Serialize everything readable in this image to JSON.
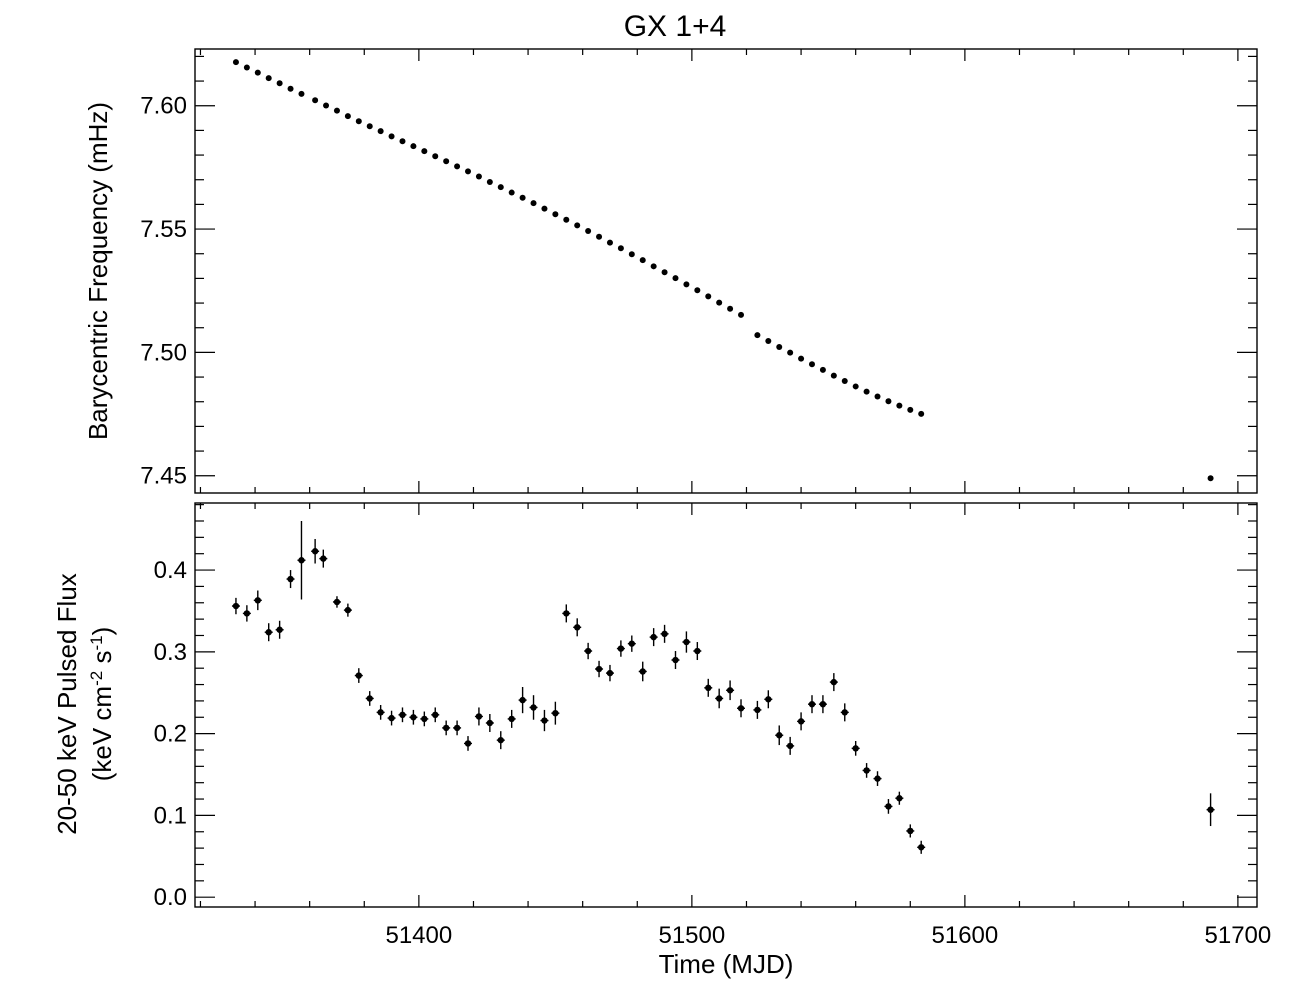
{
  "chart_data": [
    {
      "type": "scatter",
      "title": "GX 1+4",
      "ylabel": "Barycentric Frequency (mHz)",
      "ylim": [
        7.443,
        7.623
      ],
      "xlim": [
        51318,
        51707
      ],
      "yticks": [
        "7.45",
        "7.50",
        "7.55",
        "7.60"
      ],
      "grid": false,
      "series": [
        {
          "x": [
            51333,
            51337,
            51341,
            51345,
            51349,
            51353,
            51357,
            51362,
            51366,
            51370,
            51374,
            51378,
            51382,
            51386,
            51390,
            51394,
            51398,
            51402,
            51406,
            51410,
            51414,
            51418,
            51422,
            51426,
            51430,
            51434,
            51438,
            51442,
            51446,
            51450,
            51454,
            51458,
            51462,
            51466,
            51470,
            51474,
            51478,
            51482,
            51486,
            51490,
            51494,
            51498,
            51502,
            51506,
            51510,
            51514,
            51518,
            51524,
            51528,
            51532,
            51536,
            51540,
            51544,
            51548,
            51552,
            51556,
            51560,
            51564,
            51568,
            51572,
            51576,
            51580,
            51584,
            51690
          ],
          "y": [
            7.6177,
            7.6155,
            7.6134,
            7.6112,
            7.6091,
            7.6069,
            7.6048,
            7.6022,
            7.6001,
            7.598,
            7.5958,
            7.5937,
            7.5917,
            7.5897,
            7.5876,
            7.5856,
            7.5836,
            7.5816,
            7.5795,
            7.5775,
            7.5754,
            7.5734,
            7.5713,
            7.5691,
            7.567,
            7.5648,
            7.5627,
            7.5605,
            7.5583,
            7.556,
            7.5538,
            7.5515,
            7.5492,
            7.5469,
            7.5445,
            7.5422,
            7.5398,
            7.5374,
            7.5349,
            7.5325,
            7.5301,
            7.5276,
            7.5252,
            7.5227,
            7.5202,
            7.5177,
            7.5152,
            7.507,
            7.5046,
            7.5022,
            7.4999,
            7.4975,
            7.4952,
            7.4929,
            7.4906,
            7.4884,
            7.4862,
            7.4841,
            7.4821,
            7.4802,
            7.4784,
            7.4767,
            7.4751,
            7.449
          ]
        }
      ]
    },
    {
      "type": "scatter",
      "ylabel": "20-50 keV Pulsed Flux",
      "ylabel2": "(keV cm",
      "ylabel2_sup1": "-2",
      "ylabel2_mid": " s",
      "ylabel2_sup2": "-1",
      "ylabel2_end": ")",
      "xlabel": "Time (MJD)",
      "xlim": [
        51318,
        51707
      ],
      "ylim": [
        -0.012,
        0.482
      ],
      "xticks": [
        "51400",
        "51500",
        "51600",
        "51700"
      ],
      "yticks": [
        "0.0",
        "0.1",
        "0.2",
        "0.3",
        "0.4"
      ],
      "grid": false,
      "series": [
        {
          "x": [
            51333,
            51337,
            51341,
            51345,
            51349,
            51353,
            51357,
            51362,
            51365,
            51370,
            51374,
            51378,
            51382,
            51386,
            51390,
            51394,
            51398,
            51402,
            51406,
            51410,
            51414,
            51418,
            51422,
            51426,
            51430,
            51434,
            51438,
            51442,
            51446,
            51450,
            51454,
            51458,
            51462,
            51466,
            51470,
            51474,
            51478,
            51482,
            51486,
            51490,
            51494,
            51498,
            51502,
            51506,
            51510,
            51514,
            51518,
            51524,
            51528,
            51532,
            51536,
            51540,
            51544,
            51548,
            51552,
            51556,
            51560,
            51564,
            51568,
            51572,
            51576,
            51580,
            51584,
            51690
          ],
          "y": [
            0.356,
            0.347,
            0.363,
            0.324,
            0.327,
            0.389,
            0.412,
            0.423,
            0.414,
            0.361,
            0.351,
            0.271,
            0.243,
            0.226,
            0.219,
            0.223,
            0.22,
            0.218,
            0.223,
            0.207,
            0.207,
            0.188,
            0.221,
            0.213,
            0.192,
            0.218,
            0.241,
            0.232,
            0.216,
            0.225,
            0.347,
            0.33,
            0.301,
            0.279,
            0.274,
            0.304,
            0.31,
            0.276,
            0.318,
            0.322,
            0.29,
            0.312,
            0.301,
            0.256,
            0.243,
            0.253,
            0.231,
            0.229,
            0.242,
            0.198,
            0.185,
            0.215,
            0.236,
            0.236,
            0.263,
            0.226,
            0.182,
            0.155,
            0.145,
            0.111,
            0.121,
            0.081,
            0.061,
            0.107
          ],
          "yerr": [
            0.01,
            0.01,
            0.012,
            0.011,
            0.011,
            0.011,
            0.048,
            0.015,
            0.011,
            0.007,
            0.008,
            0.009,
            0.009,
            0.009,
            0.009,
            0.009,
            0.009,
            0.009,
            0.009,
            0.009,
            0.009,
            0.009,
            0.011,
            0.011,
            0.011,
            0.011,
            0.016,
            0.015,
            0.013,
            0.014,
            0.011,
            0.011,
            0.01,
            0.01,
            0.01,
            0.01,
            0.01,
            0.012,
            0.011,
            0.011,
            0.011,
            0.013,
            0.011,
            0.011,
            0.012,
            0.012,
            0.011,
            0.011,
            0.011,
            0.012,
            0.011,
            0.011,
            0.011,
            0.011,
            0.011,
            0.011,
            0.009,
            0.009,
            0.009,
            0.009,
            0.008,
            0.008,
            0.008,
            0.02
          ]
        }
      ]
    }
  ]
}
